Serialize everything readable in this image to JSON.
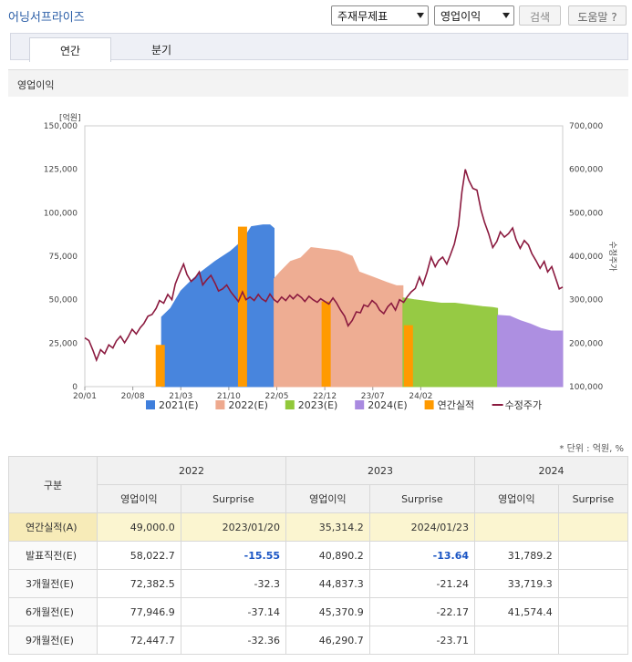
{
  "header": {
    "title": "어닝서프라이즈",
    "select1": "주재무제표",
    "select2": "영업이익",
    "search_label": "검색",
    "help_label": "도움말"
  },
  "tabs": [
    {
      "label": "연간"
    },
    {
      "label": "분기"
    }
  ],
  "section_title": "영업이익",
  "units_note": "* 단위 : 억원, %",
  "colors": {
    "e2021": "#3f7fdc",
    "e2022": "#eea98e",
    "e2023": "#91c83a",
    "e2024": "#a98ae0",
    "actual": "#ff9a00",
    "price": "#8b1a3f"
  },
  "chart_data": {
    "type": "area",
    "y_left_unit": "[억원]",
    "y_left_ticks": [
      "0",
      "25,000",
      "50,000",
      "75,000",
      "100,000",
      "125,000",
      "150,000"
    ],
    "y_left_range": [
      0,
      150000
    ],
    "y_right_label": "수정주가",
    "y_right_ticks": [
      "100,000",
      "200,000",
      "300,000",
      "400,000",
      "500,000",
      "600,000",
      "700,000"
    ],
    "y_right_range": [
      100000,
      700000
    ],
    "x_ticks": [
      "20/01",
      "20/08",
      "21/03",
      "21/10",
      "22/05",
      "22/12",
      "23/07",
      "24/02"
    ],
    "legend": [
      "2021(E)",
      "2022(E)",
      "2023(E)",
      "2024(E)",
      "연간실적",
      "수정주가"
    ],
    "estimate_series": [
      {
        "name": "2021(E)",
        "points": [
          [
            11.2,
            40000
          ],
          [
            12.5,
            45000
          ],
          [
            14.0,
            55000
          ],
          [
            15.8,
            62000
          ],
          [
            17.0,
            66000
          ],
          [
            19.0,
            72000
          ],
          [
            21.3,
            78000
          ],
          [
            23.0,
            84000
          ],
          [
            24.3,
            92000
          ],
          [
            26.0,
            93000
          ],
          [
            27.0,
            93000
          ],
          [
            27.6,
            91000
          ]
        ]
      },
      {
        "name": "2022(E)",
        "points": [
          [
            27.6,
            62000
          ],
          [
            28.5,
            66000
          ],
          [
            30.0,
            72000
          ],
          [
            31.5,
            74000
          ],
          [
            33.0,
            80000
          ],
          [
            35.0,
            79000
          ],
          [
            37.0,
            78000
          ],
          [
            39.0,
            75000
          ],
          [
            40.0,
            66000
          ],
          [
            42.0,
            63000
          ],
          [
            44.0,
            60000
          ],
          [
            45.5,
            58000
          ],
          [
            46.4,
            58000
          ]
        ]
      },
      {
        "name": "2023(E)",
        "points": [
          [
            46.4,
            51000
          ],
          [
            48.0,
            50000
          ],
          [
            50.0,
            49000
          ],
          [
            52.0,
            48000
          ],
          [
            54.0,
            48000
          ],
          [
            56.0,
            47000
          ],
          [
            58.0,
            46000
          ],
          [
            59.5,
            45500
          ],
          [
            60.2,
            45000
          ]
        ]
      },
      {
        "name": "2024(E)",
        "points": [
          [
            60.2,
            41000
          ],
          [
            62.0,
            40500
          ],
          [
            63.5,
            38000
          ],
          [
            65.0,
            36000
          ],
          [
            66.5,
            33500
          ],
          [
            68.0,
            32000
          ],
          [
            69.7,
            32000
          ]
        ]
      }
    ],
    "annual_actual_bars": [
      {
        "year": "2020",
        "x": 11.0,
        "value": 24000
      },
      {
        "year": "2021",
        "x": 23.0,
        "value": 92000
      },
      {
        "year": "2022",
        "x": 35.2,
        "value": 49000
      },
      {
        "year": "2023",
        "x": 47.2,
        "value": 35314.2
      }
    ],
    "price_series": {
      "name": "수정주가",
      "points": [
        [
          0,
          212000
        ],
        [
          0.6,
          206000
        ],
        [
          1.2,
          183000
        ],
        [
          1.7,
          161000
        ],
        [
          2.3,
          185000
        ],
        [
          2.9,
          176000
        ],
        [
          3.5,
          196000
        ],
        [
          4.1,
          189000
        ],
        [
          4.6,
          205000
        ],
        [
          5.2,
          216000
        ],
        [
          5.8,
          201000
        ],
        [
          6.3,
          214000
        ],
        [
          6.9,
          232000
        ],
        [
          7.5,
          221000
        ],
        [
          8.1,
          236000
        ],
        [
          8.6,
          245000
        ],
        [
          9.2,
          262000
        ],
        [
          9.8,
          266000
        ],
        [
          10.4,
          280000
        ],
        [
          10.9,
          298000
        ],
        [
          11.5,
          292000
        ],
        [
          12.1,
          312000
        ],
        [
          12.7,
          300000
        ],
        [
          13.2,
          336000
        ],
        [
          13.8,
          360000
        ],
        [
          14.4,
          382000
        ],
        [
          14.9,
          358000
        ],
        [
          15.5,
          342000
        ],
        [
          16.1,
          350000
        ],
        [
          16.7,
          364000
        ],
        [
          17.2,
          334000
        ],
        [
          17.8,
          346000
        ],
        [
          18.4,
          356000
        ],
        [
          19.0,
          338000
        ],
        [
          19.5,
          320000
        ],
        [
          20.1,
          325000
        ],
        [
          20.7,
          334000
        ],
        [
          21.3,
          318000
        ],
        [
          21.8,
          308000
        ],
        [
          22.4,
          296000
        ],
        [
          23.0,
          318000
        ],
        [
          23.5,
          300000
        ],
        [
          24.1,
          306000
        ],
        [
          24.7,
          298000
        ],
        [
          25.3,
          312000
        ],
        [
          25.8,
          302000
        ],
        [
          26.4,
          296000
        ],
        [
          27.0,
          313000
        ],
        [
          27.6,
          300000
        ],
        [
          28.1,
          294000
        ],
        [
          28.7,
          306000
        ],
        [
          29.3,
          298000
        ],
        [
          29.9,
          310000
        ],
        [
          30.4,
          302000
        ],
        [
          31.0,
          312000
        ],
        [
          31.6,
          305000
        ],
        [
          32.1,
          296000
        ],
        [
          32.7,
          308000
        ],
        [
          33.3,
          300000
        ],
        [
          33.9,
          294000
        ],
        [
          34.4,
          302000
        ],
        [
          35.0,
          296000
        ],
        [
          35.6,
          290000
        ],
        [
          36.2,
          304000
        ],
        [
          36.7,
          293000
        ],
        [
          37.3,
          276000
        ],
        [
          37.9,
          262000
        ],
        [
          38.4,
          240000
        ],
        [
          39.0,
          252000
        ],
        [
          39.6,
          272000
        ],
        [
          40.2,
          270000
        ],
        [
          40.7,
          288000
        ],
        [
          41.3,
          284000
        ],
        [
          41.9,
          298000
        ],
        [
          42.5,
          290000
        ],
        [
          43.0,
          276000
        ],
        [
          43.6,
          268000
        ],
        [
          44.2,
          284000
        ],
        [
          44.7,
          292000
        ],
        [
          45.3,
          276000
        ],
        [
          45.9,
          300000
        ],
        [
          46.5,
          294000
        ],
        [
          47.0,
          306000
        ],
        [
          47.6,
          318000
        ],
        [
          48.2,
          326000
        ],
        [
          48.8,
          352000
        ],
        [
          49.3,
          334000
        ],
        [
          49.9,
          362000
        ],
        [
          50.5,
          398000
        ],
        [
          51.1,
          376000
        ],
        [
          51.6,
          390000
        ],
        [
          52.2,
          398000
        ],
        [
          52.8,
          382000
        ],
        [
          53.3,
          402000
        ],
        [
          53.9,
          428000
        ],
        [
          54.5,
          470000
        ],
        [
          55.0,
          548000
        ],
        [
          55.5,
          600000
        ],
        [
          56.0,
          575000
        ],
        [
          56.6,
          556000
        ],
        [
          57.2,
          552000
        ],
        [
          57.8,
          506000
        ],
        [
          58.3,
          478000
        ],
        [
          58.9,
          452000
        ],
        [
          59.5,
          420000
        ],
        [
          60.1,
          434000
        ],
        [
          60.6,
          456000
        ],
        [
          61.2,
          444000
        ],
        [
          61.8,
          452000
        ],
        [
          62.4,
          465000
        ],
        [
          62.9,
          438000
        ],
        [
          63.5,
          418000
        ],
        [
          64.1,
          436000
        ],
        [
          64.7,
          426000
        ],
        [
          65.2,
          406000
        ],
        [
          65.8,
          390000
        ],
        [
          66.4,
          372000
        ],
        [
          67.0,
          388000
        ],
        [
          67.5,
          364000
        ],
        [
          68.1,
          376000
        ],
        [
          68.7,
          348000
        ],
        [
          69.2,
          325000
        ],
        [
          69.7,
          329000
        ]
      ]
    }
  },
  "table": {
    "group_header": "구분",
    "years": [
      "2022",
      "2023",
      "2024"
    ],
    "sub_headers": [
      "영업이익",
      "Surprise"
    ],
    "rows": [
      {
        "label": "연간실적(A)",
        "values": [
          "49,000.0",
          "2023/01/20",
          "35,314.2",
          "2024/01/23",
          "",
          ""
        ]
      },
      {
        "label": "발표직전(E)",
        "values": [
          "58,022.7",
          "-15.55",
          "40,890.2",
          "-13.64",
          "31,789.2",
          ""
        ]
      },
      {
        "label": "3개월전(E)",
        "values": [
          "72,382.5",
          "-32.3",
          "44,837.3",
          "-21.24",
          "33,719.3",
          ""
        ]
      },
      {
        "label": "6개월전(E)",
        "values": [
          "77,946.9",
          "-37.14",
          "45,370.9",
          "-22.17",
          "41,574.4",
          ""
        ]
      },
      {
        "label": "9개월전(E)",
        "values": [
          "72,447.7",
          "-32.36",
          "46,290.7",
          "-23.71",
          "",
          ""
        ]
      }
    ]
  }
}
